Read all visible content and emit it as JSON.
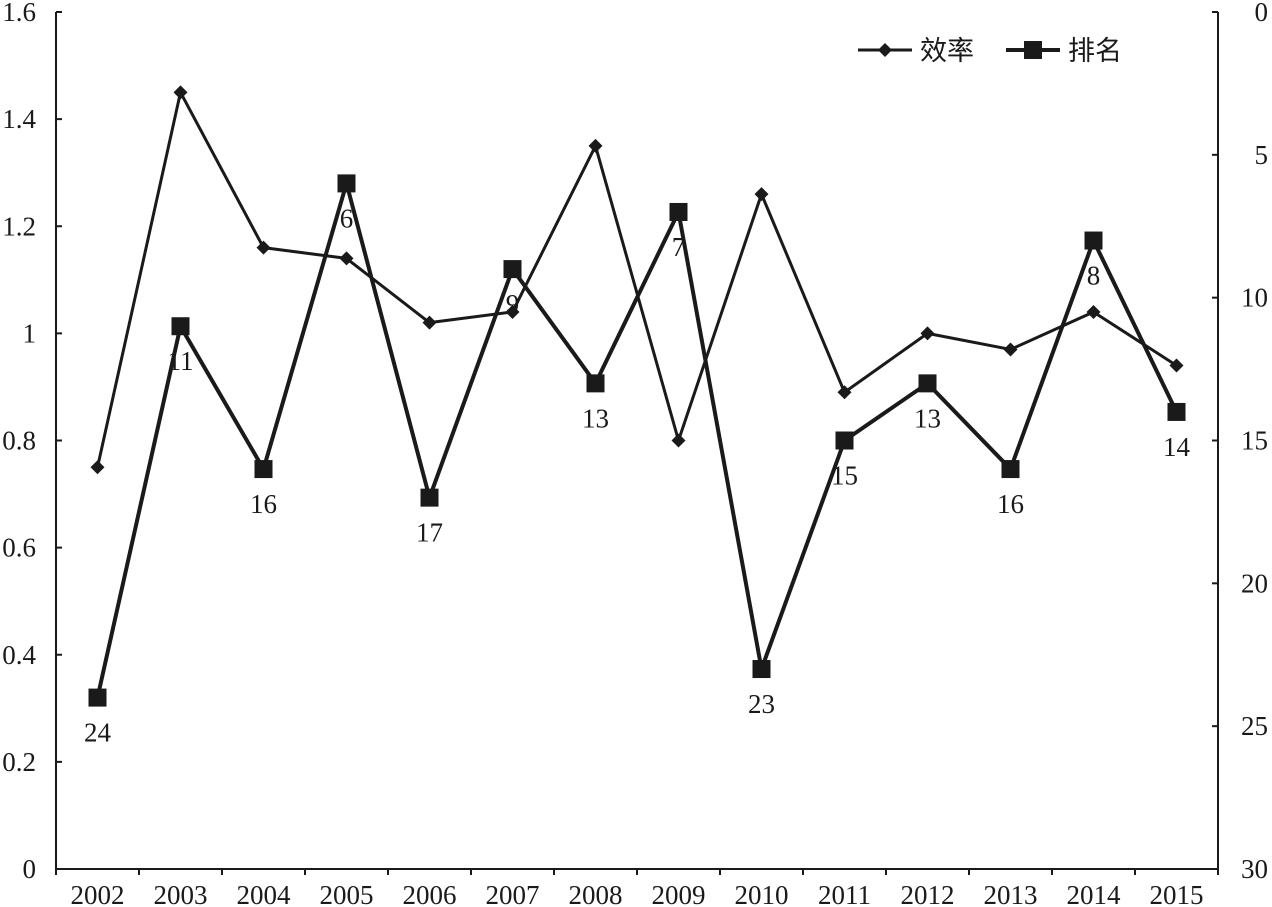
{
  "chart_data": {
    "type": "line",
    "title": "",
    "xlabel": "",
    "ylabel": "",
    "y2label": "",
    "categories": [
      "2002",
      "2003",
      "2004",
      "2005",
      "2006",
      "2007",
      "2008",
      "2009",
      "2010",
      "2011",
      "2012",
      "2013",
      "2014",
      "2015"
    ],
    "left_axis": {
      "ylim": [
        0,
        1.6
      ],
      "ticks": [
        "0",
        "0.2",
        "0.4",
        "0.6",
        "0.8",
        "1",
        "1.2",
        "1.4",
        "1.6"
      ]
    },
    "right_axis": {
      "ylim": [
        0,
        30
      ],
      "inverted": true,
      "ticks": [
        "0",
        "5",
        "10",
        "15",
        "20",
        "25",
        "30"
      ]
    },
    "grid": false,
    "legend_position": "top-right",
    "series": [
      {
        "name": "效率",
        "axis": "left",
        "marker": "diamond",
        "color": "#1a1a1a",
        "values": [
          0.75,
          1.45,
          1.16,
          1.14,
          1.02,
          1.04,
          1.35,
          0.8,
          1.26,
          0.89,
          1.0,
          0.97,
          1.04,
          0.94
        ]
      },
      {
        "name": "排名",
        "axis": "right",
        "marker": "square",
        "color": "#1a1a1a",
        "values": [
          24,
          11,
          16,
          6,
          17,
          9,
          13,
          7,
          23,
          15,
          13,
          16,
          8,
          14
        ],
        "data_labels": [
          "24",
          "11",
          "16",
          "6",
          "17",
          "9",
          "13",
          "7",
          "23",
          "15",
          "13",
          "16",
          "8",
          "14"
        ]
      }
    ]
  }
}
